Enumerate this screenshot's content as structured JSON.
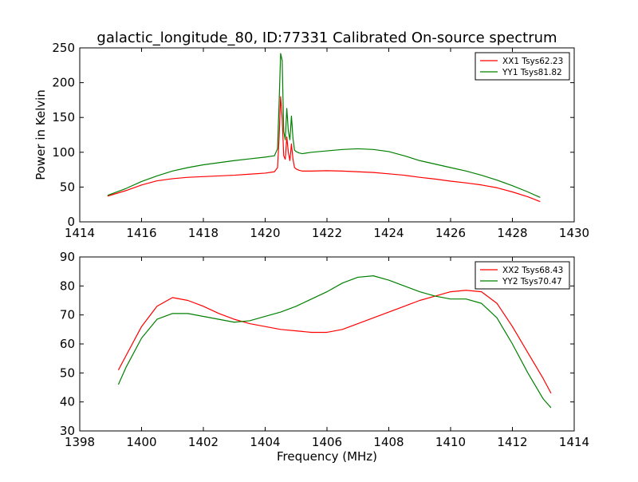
{
  "figure": {
    "title": "galactic_longitude_80, ID:77331 Calibrated On-source spectrum"
  },
  "chart_data": [
    {
      "type": "line",
      "title": "galactic_longitude_80, ID:77331 Calibrated On-source spectrum",
      "xlabel": "",
      "ylabel": "Power in Kelvin",
      "xlim": [
        1414,
        1430
      ],
      "ylim": [
        0,
        250
      ],
      "xticks": [
        "1414",
        "1416",
        "1418",
        "1420",
        "1422",
        "1424",
        "1426",
        "1428",
        "1430"
      ],
      "yticks": [
        "0",
        "50",
        "100",
        "150",
        "200",
        "250"
      ],
      "grid": false,
      "legend_position": "top-right",
      "series": [
        {
          "name": "XX1 Tsys62.23",
          "color": "#ff0000",
          "x": [
            1414.9,
            1415.5,
            1416.0,
            1416.5,
            1417.0,
            1417.5,
            1418.0,
            1418.5,
            1419.0,
            1419.5,
            1420.0,
            1420.3,
            1420.4,
            1420.45,
            1420.5,
            1420.55,
            1420.6,
            1420.65,
            1420.7,
            1420.75,
            1420.8,
            1420.85,
            1420.9,
            1420.95,
            1421.0,
            1421.1,
            1421.2,
            1421.5,
            1422.0,
            1422.5,
            1423.0,
            1423.5,
            1424.0,
            1424.5,
            1425.0,
            1425.5,
            1426.0,
            1426.5,
            1427.0,
            1427.5,
            1428.0,
            1428.5,
            1428.9
          ],
          "y": [
            37,
            45,
            53,
            59,
            62,
            64,
            65,
            66,
            67,
            68.5,
            70,
            72,
            78,
            120,
            180,
            150,
            95,
            90,
            122,
            100,
            88,
            112,
            90,
            78,
            76,
            74,
            73,
            73,
            73.5,
            73,
            72,
            71,
            69,
            67,
            64,
            61.5,
            58.5,
            56,
            53,
            49,
            43,
            36,
            29
          ]
        },
        {
          "name": "YY1 Tsys81.82",
          "color": "#008000",
          "x": [
            1414.9,
            1415.5,
            1416.0,
            1416.5,
            1417.0,
            1417.5,
            1418.0,
            1418.5,
            1419.0,
            1419.5,
            1420.0,
            1420.3,
            1420.4,
            1420.45,
            1420.5,
            1420.55,
            1420.6,
            1420.65,
            1420.7,
            1420.75,
            1420.8,
            1420.85,
            1420.9,
            1420.95,
            1421.0,
            1421.1,
            1421.2,
            1421.5,
            1422.0,
            1422.5,
            1423.0,
            1423.5,
            1424.0,
            1424.5,
            1425.0,
            1425.5,
            1426.0,
            1426.5,
            1427.0,
            1427.5,
            1428.0,
            1428.5,
            1428.9
          ],
          "y": [
            38,
            48,
            58,
            66,
            73,
            78,
            82,
            85,
            88,
            90.5,
            93,
            95,
            105,
            170,
            242,
            232,
            130,
            118,
            163,
            130,
            118,
            152,
            120,
            103,
            101,
            99,
            98,
            100,
            102,
            104,
            105,
            104,
            101,
            95,
            88,
            83,
            78,
            73,
            67,
            60,
            52,
            43,
            35
          ]
        }
      ]
    },
    {
      "type": "line",
      "title": "",
      "xlabel": "Frequency (MHz)",
      "ylabel": "",
      "xlim": [
        1398,
        1414
      ],
      "ylim": [
        30,
        90
      ],
      "xticks": [
        "1398",
        "1400",
        "1402",
        "1404",
        "1406",
        "1408",
        "1410",
        "1412",
        "1414"
      ],
      "yticks": [
        "30",
        "40",
        "50",
        "60",
        "70",
        "80",
        "90"
      ],
      "grid": false,
      "legend_position": "top-right",
      "series": [
        {
          "name": "XX2 Tsys68.43",
          "color": "#ff0000",
          "x": [
            1399.25,
            1399.5,
            1400.0,
            1400.5,
            1401.0,
            1401.5,
            1402.0,
            1402.5,
            1403.0,
            1403.5,
            1404.0,
            1404.5,
            1405.0,
            1405.5,
            1406.0,
            1406.5,
            1407.0,
            1407.5,
            1408.0,
            1408.5,
            1409.0,
            1409.5,
            1410.0,
            1410.5,
            1411.0,
            1411.5,
            1412.0,
            1412.5,
            1413.0,
            1413.25
          ],
          "y": [
            51,
            56,
            66,
            73,
            76,
            75,
            73,
            70.5,
            68.5,
            67,
            66,
            65,
            64.5,
            64,
            64,
            65,
            67,
            69,
            71,
            73,
            75,
            76.5,
            78,
            78.5,
            78,
            74,
            66,
            57,
            48,
            43
          ]
        },
        {
          "name": "YY2 Tsys70.47",
          "color": "#008000",
          "x": [
            1399.25,
            1399.5,
            1400.0,
            1400.5,
            1401.0,
            1401.5,
            1402.0,
            1402.5,
            1403.0,
            1403.5,
            1404.0,
            1404.5,
            1405.0,
            1405.5,
            1406.0,
            1406.5,
            1407.0,
            1407.5,
            1408.0,
            1408.5,
            1409.0,
            1409.5,
            1410.0,
            1410.5,
            1411.0,
            1411.5,
            1412.0,
            1412.5,
            1413.0,
            1413.25
          ],
          "y": [
            46,
            52,
            62,
            68.5,
            70.5,
            70.5,
            69.5,
            68.5,
            67.5,
            68,
            69.5,
            71,
            73,
            75.5,
            78,
            81,
            83,
            83.5,
            82,
            80,
            78,
            76.5,
            75.5,
            75.5,
            74,
            69,
            60,
            50,
            41,
            38
          ]
        }
      ]
    }
  ]
}
